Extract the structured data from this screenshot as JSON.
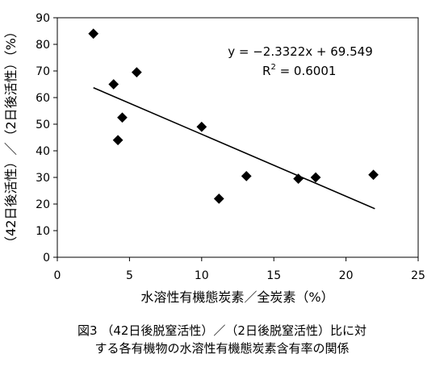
{
  "chart_data": {
    "type": "scatter",
    "xlabel": "水溶性有機態炭素／全炭素（%）",
    "ylabel": "（42日後活性）／（2日後活性）（%）",
    "xlim": [
      0,
      25
    ],
    "ylim": [
      0,
      90
    ],
    "xticks": [
      0,
      5,
      10,
      15,
      20,
      25
    ],
    "yticks": [
      0,
      10,
      20,
      30,
      40,
      50,
      60,
      70,
      80,
      90
    ],
    "grid": false,
    "legend": "none",
    "marker_color": "#000000",
    "points": [
      {
        "x": 2.5,
        "y": 84
      },
      {
        "x": 3.9,
        "y": 65
      },
      {
        "x": 4.2,
        "y": 44
      },
      {
        "x": 4.5,
        "y": 52.5
      },
      {
        "x": 5.5,
        "y": 69.5
      },
      {
        "x": 10.0,
        "y": 49
      },
      {
        "x": 11.2,
        "y": 22
      },
      {
        "x": 13.1,
        "y": 30.5
      },
      {
        "x": 16.7,
        "y": 29.5
      },
      {
        "x": 17.9,
        "y": 30
      },
      {
        "x": 21.9,
        "y": 31
      }
    ],
    "trendline": {
      "slope": -2.3322,
      "intercept": 69.549,
      "x_range": [
        2.5,
        22
      ],
      "equation": "y = −2.3322x + 69.549",
      "r2_prefix": "R",
      "r2_sup": "2",
      "r2_value": " = 0.6001"
    }
  },
  "caption": {
    "line1": "図3 （42日後脱窒活性）／（2日後脱窒活性）比に対",
    "line2": "する各有機物の水溶性有機態炭素含有率の関係"
  }
}
